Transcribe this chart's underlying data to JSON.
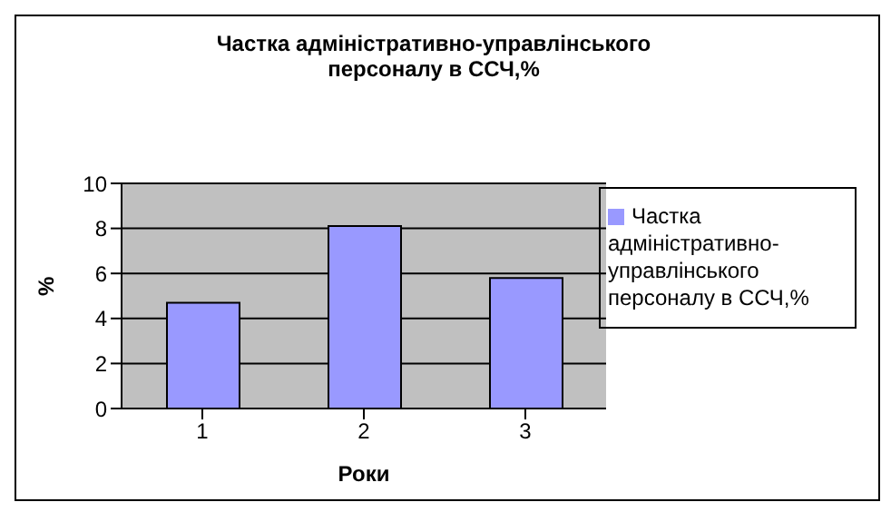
{
  "chart_data": {
    "type": "bar",
    "title": "Частка адміністративно-управлінського персоналу в ССЧ,%",
    "xlabel": "Роки",
    "ylabel": "%",
    "categories": [
      "1",
      "2",
      "3"
    ],
    "series": [
      {
        "name": "Частка адміністративно-управлінського персоналу в ССЧ,%",
        "color": "#9999ff",
        "values": [
          4.7,
          8.1,
          5.8
        ]
      }
    ],
    "ylim": [
      0,
      10
    ],
    "yticks": [
      0,
      2,
      4,
      6,
      8,
      10
    ],
    "grid": "y",
    "legend": "right"
  }
}
